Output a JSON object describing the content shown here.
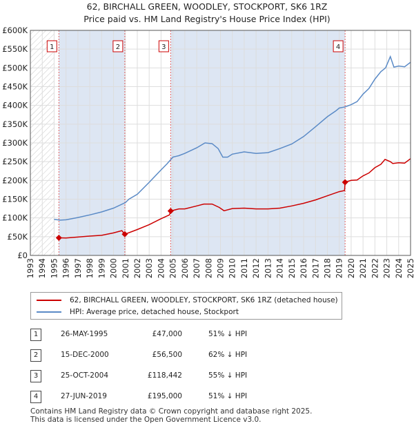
{
  "title_line1": "62, BIRCHALL GREEN, WOODLEY, STOCKPORT, SK6 1RZ",
  "title_line2": "Price paid vs. HM Land Registry's House Price Index (HPI)",
  "chart_data": {
    "type": "line",
    "xlim": [
      1993,
      2025
    ],
    "ylim": [
      0,
      600000
    ],
    "y_ticks": [
      0,
      50000,
      100000,
      150000,
      200000,
      250000,
      300000,
      350000,
      400000,
      450000,
      500000,
      550000,
      600000
    ],
    "y_tick_labels": [
      "£0",
      "£50K",
      "£100K",
      "£150K",
      "£200K",
      "£250K",
      "£300K",
      "£350K",
      "£400K",
      "£450K",
      "£500K",
      "£550K",
      "£600K"
    ],
    "x_ticks": [
      1993,
      1994,
      1995,
      1996,
      1997,
      1998,
      1999,
      2000,
      2001,
      2002,
      2003,
      2004,
      2005,
      2006,
      2007,
      2008,
      2009,
      2010,
      2011,
      2012,
      2013,
      2014,
      2015,
      2016,
      2017,
      2018,
      2019,
      2020,
      2021,
      2022,
      2023,
      2024,
      2025
    ],
    "x_tick_labels": [
      "1993",
      "1994",
      "1995",
      "1996",
      "1997",
      "1998",
      "1999",
      "2000",
      "2001",
      "2002",
      "2003",
      "2004",
      "2005",
      "2006",
      "2007",
      "2008",
      "2009",
      "2010",
      "2011",
      "2012",
      "2013",
      "2014",
      "2015",
      "2016",
      "2017",
      "2018",
      "2019",
      "2020",
      "2021",
      "2022",
      "2023",
      "2024",
      "2025"
    ],
    "grid": true,
    "hatched_range": [
      1993,
      1995.0
    ],
    "series": [
      {
        "name": "62, BIRCHALL GREEN, WOODLEY, STOCKPORT, SK6 1RZ (detached house)",
        "color": "#cc0000",
        "points": [
          [
            1995.4,
            47000
          ],
          [
            1996.0,
            46500
          ],
          [
            1997.0,
            49000
          ],
          [
            1998.0,
            51500
          ],
          [
            1999.0,
            53500
          ],
          [
            2000.0,
            60000
          ],
          [
            2000.7,
            66000
          ],
          [
            2000.95,
            56500
          ],
          [
            2002.0,
            69000
          ],
          [
            2003.0,
            82000
          ],
          [
            2004.0,
            98000
          ],
          [
            2004.7,
            108000
          ],
          [
            2004.81,
            118442
          ],
          [
            2005.5,
            124000
          ],
          [
            2006.0,
            124000
          ],
          [
            2007.0,
            132000
          ],
          [
            2007.6,
            137000
          ],
          [
            2008.3,
            137000
          ],
          [
            2008.9,
            128000
          ],
          [
            2009.3,
            119000
          ],
          [
            2010.0,
            125000
          ],
          [
            2011.0,
            126000
          ],
          [
            2012.0,
            124000
          ],
          [
            2013.0,
            124000
          ],
          [
            2014.0,
            126000
          ],
          [
            2015.0,
            132000
          ],
          [
            2016.0,
            139000
          ],
          [
            2017.0,
            148000
          ],
          [
            2018.0,
            159000
          ],
          [
            2019.0,
            170000
          ],
          [
            2019.45,
            173000
          ],
          [
            2019.49,
            195000
          ],
          [
            2020.0,
            200000
          ],
          [
            2020.5,
            201000
          ],
          [
            2021.0,
            212000
          ],
          [
            2021.5,
            220000
          ],
          [
            2022.0,
            234000
          ],
          [
            2022.5,
            243000
          ],
          [
            2022.85,
            256000
          ],
          [
            2023.3,
            250000
          ],
          [
            2023.5,
            245000
          ],
          [
            2024.0,
            247000
          ],
          [
            2024.5,
            246000
          ],
          [
            2025.0,
            258000
          ]
        ]
      },
      {
        "name": "HPI: Average price, detached house, Stockport",
        "color": "#5a8ac6",
        "points": [
          [
            1995.0,
            96000
          ],
          [
            1995.5,
            94000
          ],
          [
            1996.0,
            95000
          ],
          [
            1997.0,
            101000
          ],
          [
            1998.0,
            108000
          ],
          [
            1999.0,
            116000
          ],
          [
            2000.0,
            126000
          ],
          [
            2001.0,
            141000
          ],
          [
            2001.3,
            150000
          ],
          [
            2002.0,
            163000
          ],
          [
            2003.0,
            195000
          ],
          [
            2004.0,
            228000
          ],
          [
            2004.5,
            244000
          ],
          [
            2005.0,
            262000
          ],
          [
            2005.5,
            266000
          ],
          [
            2006.0,
            272000
          ],
          [
            2007.0,
            287000
          ],
          [
            2007.7,
            300000
          ],
          [
            2008.3,
            298000
          ],
          [
            2008.8,
            285000
          ],
          [
            2009.2,
            262000
          ],
          [
            2009.6,
            262000
          ],
          [
            2010.0,
            270000
          ],
          [
            2011.0,
            276000
          ],
          [
            2012.0,
            272000
          ],
          [
            2013.0,
            274000
          ],
          [
            2014.0,
            285000
          ],
          [
            2015.0,
            297000
          ],
          [
            2016.0,
            317000
          ],
          [
            2017.0,
            343000
          ],
          [
            2018.0,
            370000
          ],
          [
            2018.7,
            385000
          ],
          [
            2019.0,
            393000
          ],
          [
            2019.5,
            396000
          ],
          [
            2020.0,
            402000
          ],
          [
            2020.5,
            410000
          ],
          [
            2021.0,
            430000
          ],
          [
            2021.5,
            445000
          ],
          [
            2022.0,
            470000
          ],
          [
            2022.5,
            490000
          ],
          [
            2022.9,
            500000
          ],
          [
            2023.3,
            530000
          ],
          [
            2023.6,
            502000
          ],
          [
            2024.0,
            505000
          ],
          [
            2024.5,
            503000
          ],
          [
            2025.0,
            515000
          ]
        ]
      }
    ],
    "sales": [
      {
        "label": "1",
        "x": 1995.4,
        "price": 47000
      },
      {
        "label": "2",
        "x": 2000.95,
        "price": 56500
      },
      {
        "label": "3",
        "x": 2004.81,
        "price": 118442
      },
      {
        "label": "4",
        "x": 2019.49,
        "price": 195000
      }
    ]
  },
  "legend": {
    "property": "62, BIRCHALL GREEN, WOODLEY, STOCKPORT, SK6 1RZ (detached house)",
    "hpi": "HPI: Average price, detached house, Stockport"
  },
  "transactions": [
    {
      "num": "1",
      "date": "26-MAY-1995",
      "price": "£47,000",
      "hpi": "51% ↓ HPI"
    },
    {
      "num": "2",
      "date": "15-DEC-2000",
      "price": "£56,500",
      "hpi": "62% ↓ HPI"
    },
    {
      "num": "3",
      "date": "25-OCT-2004",
      "price": "£118,442",
      "hpi": "55% ↓ HPI"
    },
    {
      "num": "4",
      "date": "27-JUN-2019",
      "price": "£195,000",
      "hpi": "51% ↓ HPI"
    }
  ],
  "footer_line1": "Contains HM Land Registry data © Crown copyright and database right 2025.",
  "footer_line2": "This data is licensed under the Open Government Licence v3.0.",
  "colors": {
    "property": "#cc0000",
    "hpi": "#5a8ac6",
    "shade": "#dde6f3",
    "grid": "#dddddd"
  }
}
